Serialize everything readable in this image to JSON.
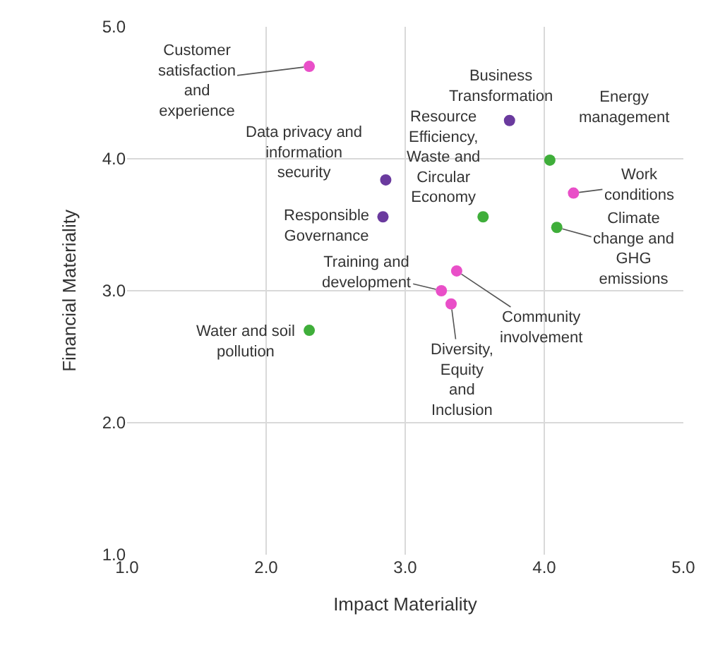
{
  "chart_data": {
    "type": "scatter",
    "xlabel": "Impact Materiality",
    "ylabel": "Financial Materiality",
    "x": [
      2.31,
      2.86,
      2.84,
      3.75,
      4.04,
      3.56,
      4.21,
      4.09,
      3.26,
      3.37,
      3.33,
      2.31
    ],
    "values": [
      4.7,
      3.84,
      3.56,
      4.29,
      3.99,
      3.56,
      3.74,
      3.48,
      3.0,
      3.15,
      2.9,
      2.7
    ],
    "colors": [
      "#e94fc8",
      "#6a3a9e",
      "#6a3a9e",
      "#6a3a9e",
      "#3fae3a",
      "#3fae3a",
      "#e94fc8",
      "#3fae3a",
      "#e94fc8",
      "#e94fc8",
      "#e94fc8",
      "#3fae3a"
    ],
    "marker": "circle",
    "grid": true,
    "xlim": [
      1,
      5
    ],
    "xticks": [
      {
        "value": 1,
        "label": "1.0"
      },
      {
        "value": 2,
        "label": "2.0"
      },
      {
        "value": 3,
        "label": "3.0"
      },
      {
        "value": 4,
        "label": "4.0"
      },
      {
        "value": 5,
        "label": "5.0"
      }
    ],
    "ylim": [
      1,
      5
    ],
    "yticks": [
      {
        "value": 1,
        "label": "1.0"
      },
      {
        "value": 2,
        "label": "2.0"
      },
      {
        "value": 3,
        "label": "3.0"
      },
      {
        "value": 4,
        "label": "4.0"
      },
      {
        "value": 5,
        "label": "5.0"
      }
    ],
    "annotations": [
      {
        "text": "Customer\nsatisfaction\nand\nexperience",
        "x": 2.31,
        "y": 4.7
      },
      {
        "text": "Data privacy and\ninformation\nsecurity",
        "x": 2.86,
        "y": 3.84
      },
      {
        "text": "Responsible\nGovernance",
        "x": 2.84,
        "y": 3.56
      },
      {
        "text": "Business\nTransformation",
        "x": 3.75,
        "y": 4.29
      },
      {
        "text": "Energy\nmanagement",
        "x": 4.04,
        "y": 3.99
      },
      {
        "text": "Resource\nEfficiency,\nWaste and\nCircular\nEconomy",
        "x": 3.56,
        "y": 3.56
      },
      {
        "text": "Work\nconditions",
        "x": 4.21,
        "y": 3.74
      },
      {
        "text": "Climate\nchange and\nGHG\nemissions",
        "x": 4.09,
        "y": 3.48
      },
      {
        "text": "Training and\ndevelopment",
        "x": 3.26,
        "y": 3.0
      },
      {
        "text": "Community\ninvolvement",
        "x": 3.37,
        "y": 3.15
      },
      {
        "text": "Diversity,\nEquity\nand\nInclusion",
        "x": 3.33,
        "y": 2.9
      },
      {
        "text": "Water and soil\npollution",
        "x": 2.31,
        "y": 2.7
      }
    ]
  }
}
